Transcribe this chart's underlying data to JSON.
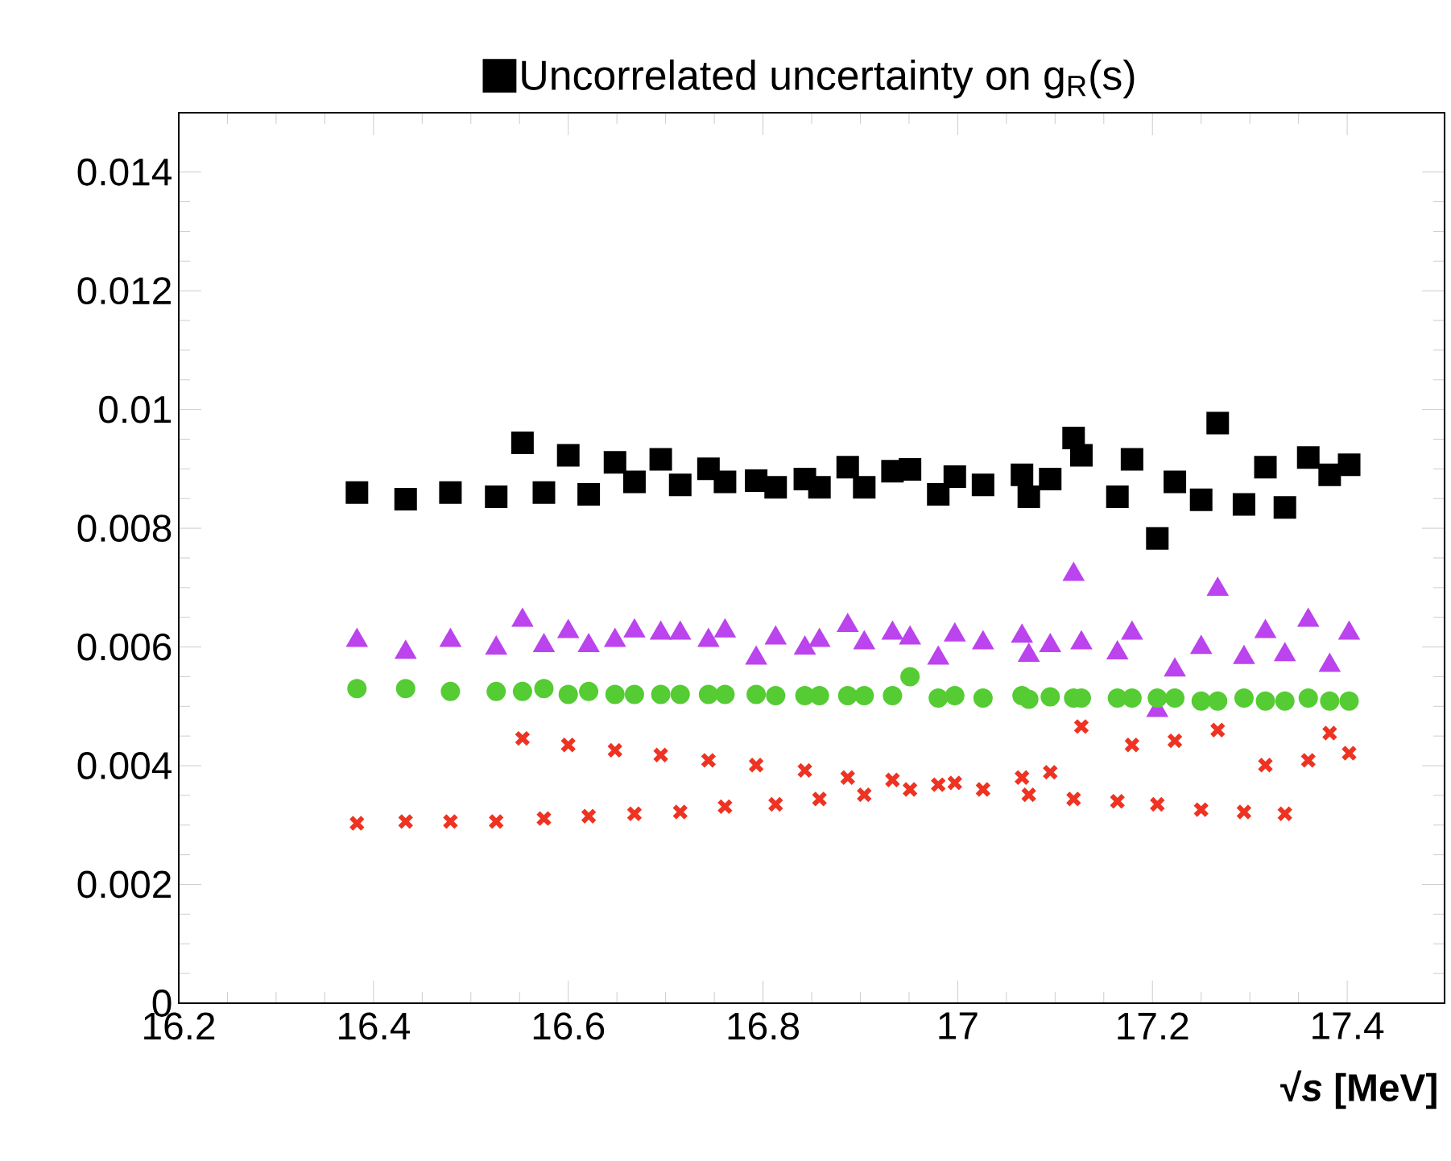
{
  "chart_data": {
    "type": "scatter",
    "xlabel": "√*s* [MeV]",
    "legend": "top",
    "grid": false,
    "xlim": [
      16.2,
      17.5
    ],
    "xticks": [
      16.2,
      16.4,
      16.6,
      16.8,
      17,
      17.2,
      17.4
    ],
    "ylim": [
      0,
      0.015
    ],
    "yticks": [
      0,
      0.002,
      0.004,
      0.006,
      0.008,
      0.01,
      0.012,
      0.014
    ],
    "x": [
      16.383,
      16.433,
      16.479,
      16.526,
      16.553,
      16.575,
      16.6,
      16.621,
      16.648,
      16.668,
      16.695,
      16.715,
      16.744,
      16.761,
      16.793,
      16.813,
      16.843,
      16.858,
      16.887,
      16.904,
      16.933,
      16.951,
      16.98,
      16.997,
      17.026,
      17.066,
      17.073,
      17.095,
      17.119,
      17.127,
      17.164,
      17.179,
      17.205,
      17.223,
      17.25,
      17.267,
      17.294,
      17.316,
      17.336,
      17.36,
      17.382,
      17.402
    ],
    "series": [
      {
        "name": "Uncorrelated uncertainty on g$_{R}$(s)",
        "color": "#000000",
        "marker": "square",
        "values": [
          0.0086,
          0.00849,
          0.0086,
          0.00853,
          0.00944,
          0.0086,
          0.00923,
          0.00857,
          0.00911,
          0.00878,
          0.00916,
          0.00873,
          0.009,
          0.00878,
          0.0088,
          0.00869,
          0.00883,
          0.00869,
          0.00903,
          0.00869,
          0.00896,
          0.00899,
          0.00857,
          0.00887,
          0.00873,
          0.0089,
          0.00853,
          0.00883,
          0.00952,
          0.00923,
          0.00853,
          0.00916,
          0.00783,
          0.00878,
          0.00848,
          0.00977,
          0.0084,
          0.00903,
          0.00835,
          0.00919,
          0.0089,
          0.00907
        ]
      },
      {
        "color": "#bb44ee",
        "marker": "triangle",
        "values": [
          0.00611,
          0.00591,
          0.00611,
          0.00598,
          0.00645,
          0.00602,
          0.00626,
          0.00602,
          0.00611,
          0.00627,
          0.00623,
          0.00623,
          0.00611,
          0.00627,
          0.00581,
          0.00615,
          0.00598,
          0.00611,
          0.00636,
          0.00607,
          0.00623,
          0.00615,
          0.00581,
          0.0062,
          0.00607,
          0.00618,
          0.00586,
          0.00602,
          0.00722,
          0.00607,
          0.0059,
          0.00623,
          0.00493,
          0.00561,
          0.00599,
          0.00697,
          0.00582,
          0.00626,
          0.00587,
          0.00645,
          0.00569,
          0.00623
        ]
      },
      {
        "color": "#55cc33",
        "marker": "circle",
        "values": [
          0.0053,
          0.0053,
          0.00525,
          0.00525,
          0.00525,
          0.0053,
          0.0052,
          0.00525,
          0.0052,
          0.0052,
          0.0052,
          0.0052,
          0.0052,
          0.0052,
          0.0052,
          0.00518,
          0.00518,
          0.00518,
          0.00518,
          0.00518,
          0.00518,
          0.0055,
          0.00514,
          0.00518,
          0.00514,
          0.00518,
          0.00512,
          0.00516,
          0.00514,
          0.00514,
          0.00514,
          0.00514,
          0.00514,
          0.00514,
          0.00509,
          0.00509,
          0.00514,
          0.00509,
          0.00509,
          0.00514,
          0.00509,
          0.00509
        ]
      },
      {
        "color": "#ee3322",
        "marker": "cross",
        "values": [
          0.00303,
          0.00306,
          0.00306,
          0.00306,
          0.00446,
          0.00311,
          0.00435,
          0.00315,
          0.00426,
          0.00319,
          0.00418,
          0.00322,
          0.00409,
          0.00331,
          0.00401,
          0.00335,
          0.00392,
          0.00344,
          0.0038,
          0.00351,
          0.00376,
          0.0036,
          0.00368,
          0.00371,
          0.0036,
          0.0038,
          0.00351,
          0.00389,
          0.00344,
          0.00466,
          0.0034,
          0.00435,
          0.00335,
          0.00442,
          0.00326,
          0.0046,
          0.00322,
          0.00401,
          0.00319,
          0.00409,
          0.00455,
          0.00421
        ]
      }
    ]
  }
}
